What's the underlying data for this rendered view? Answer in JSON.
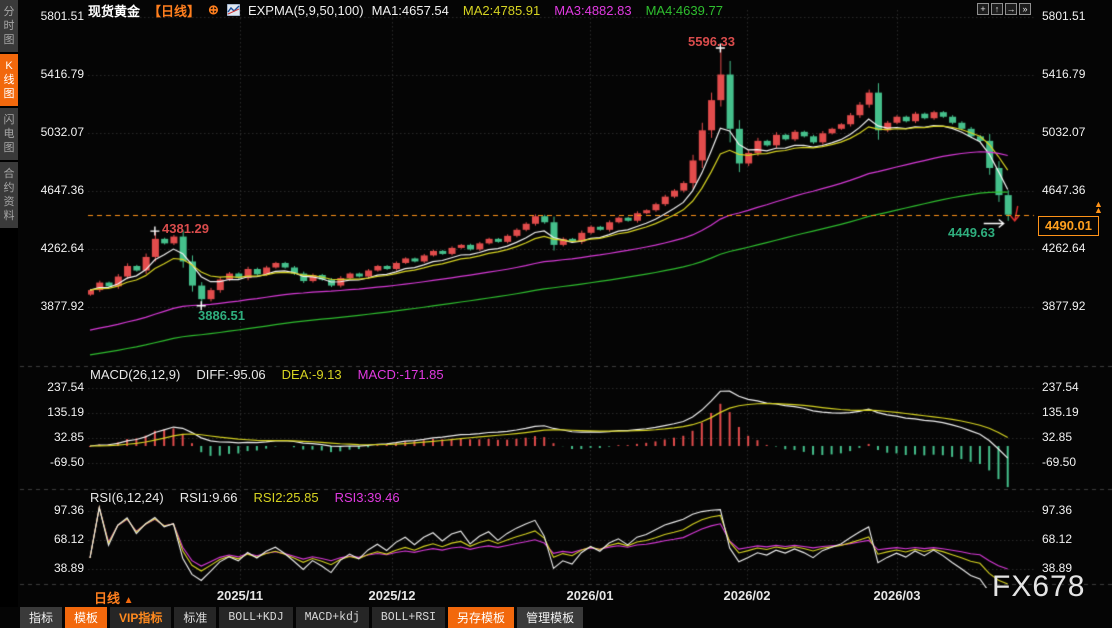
{
  "sidebar": {
    "items": [
      {
        "id": "time-chart",
        "label": "分时图",
        "active": false
      },
      {
        "id": "kline-chart",
        "label": "K线图",
        "active": true
      },
      {
        "id": "lightning-chart",
        "label": "闪电图",
        "active": false
      },
      {
        "id": "contract-info",
        "label": "合约资料",
        "active": false
      }
    ]
  },
  "header": {
    "symbol": "现货黄金",
    "period": "【日线】",
    "plus_icon": "⊕",
    "indicator": "EXPMA(5,9,50,100)",
    "ma_values": [
      {
        "name": "MA1",
        "text": "MA1:4657.54",
        "value": 4657.54,
        "color": "#f2f2f2"
      },
      {
        "name": "MA2",
        "text": "MA2:4785.91",
        "value": 4785.91,
        "color": "#d6d322"
      },
      {
        "name": "MA3",
        "text": "MA3:4882.83",
        "value": 4882.83,
        "color": "#e03ae0"
      },
      {
        "name": "MA4",
        "text": "MA4:4639.77",
        "value": 4639.77,
        "color": "#2fbf2f"
      }
    ],
    "window_icons": [
      {
        "id": "pan",
        "glyph": "+"
      },
      {
        "id": "scale-y",
        "glyph": "↑"
      },
      {
        "id": "scale-x",
        "glyph": "→"
      },
      {
        "id": "shift-right",
        "glyph": "»"
      }
    ]
  },
  "main_chart": {
    "y_axis": [
      "5801.51",
      "5416.79",
      "5032.07",
      "4647.36",
      "4262.64",
      "3877.92"
    ],
    "annotations": [
      {
        "id": "peak1",
        "text": "4381.29",
        "color": "red"
      },
      {
        "id": "trough1",
        "text": "3886.51",
        "color": "green"
      },
      {
        "id": "peak2",
        "text": "5596.33",
        "color": "red"
      },
      {
        "id": "trough2",
        "text": "4449.63",
        "color": "green"
      }
    ],
    "last_price_label": "4490.01"
  },
  "macd": {
    "title": "MACD(26,12,9)",
    "diff_label": "DIFF:-95.06",
    "dea_label": "DEA:-9.13",
    "macd_label": "MACD:-171.85",
    "y_axis": [
      "237.54",
      "135.19",
      "32.85",
      "-69.50"
    ]
  },
  "rsi": {
    "title": "RSI(6,12,24)",
    "rsi1_label": "RSI1:9.66",
    "rsi2_label": "RSI2:25.85",
    "rsi3_label": "RSI3:39.46",
    "y_axis": [
      "97.36",
      "68.12",
      "38.89"
    ]
  },
  "x_axis": {
    "period": "日线",
    "labels": [
      "2025/11",
      "2025/12",
      "2026/01",
      "2026/02",
      "2026/03"
    ]
  },
  "toolbar": {
    "items": [
      {
        "id": "indicator",
        "label": "指标",
        "style": "plain"
      },
      {
        "id": "template",
        "label": "模板",
        "style": "active"
      },
      {
        "id": "vip-indicator",
        "label": "VIP指标",
        "style": "vip"
      },
      {
        "id": "standard",
        "label": "标准",
        "style": "std"
      },
      {
        "id": "boll-kdj",
        "label": "BOLL+KDJ",
        "style": "mono"
      },
      {
        "id": "macd-kdj",
        "label": "MACD+kdj",
        "style": "mono"
      },
      {
        "id": "boll-rsi",
        "label": "BOLL+RSI",
        "style": "mono"
      },
      {
        "id": "save-template",
        "label": "另存模板",
        "style": "active"
      },
      {
        "id": "manage-template",
        "label": "管理模板",
        "style": "plain"
      }
    ]
  },
  "watermark": "FX678",
  "colors": {
    "up": "#e24c4c",
    "down": "#45c08c",
    "ma1": "#f2f2f2",
    "ma2": "#d6d322",
    "ma3": "#d93ad9",
    "ma4": "#2fbf2f",
    "accent": "#f2680c",
    "dashed_line": "#ff9318",
    "grid": "#2c2c2c",
    "separator": "#3d3d3d",
    "label_red": "#d94c4c",
    "label_green": "#2fae7e"
  },
  "chart_data": [
    {
      "type": "candlestick",
      "title": "现货黄金 日线 (Spot Gold, daily)",
      "x_labels": [
        "2025/11",
        "2025/12",
        "2026/01",
        "2026/02",
        "2026/03"
      ],
      "y_ticks": [
        5801.51,
        5416.79,
        5032.07,
        4647.36,
        4262.64,
        3877.92
      ],
      "first_open": 3960,
      "closes": [
        3990,
        4040,
        4015,
        4080,
        4150,
        4120,
        4210,
        4330,
        4300,
        4345,
        4180,
        4020,
        3930,
        3990,
        4060,
        4100,
        4070,
        4130,
        4095,
        4140,
        4170,
        4140,
        4100,
        4050,
        4090,
        4060,
        4020,
        4070,
        4100,
        4080,
        4120,
        4150,
        4130,
        4170,
        4200,
        4180,
        4220,
        4250,
        4230,
        4270,
        4290,
        4260,
        4300,
        4330,
        4310,
        4350,
        4390,
        4430,
        4480,
        4440,
        4290,
        4330,
        4310,
        4370,
        4410,
        4390,
        4440,
        4470,
        4450,
        4500,
        4520,
        4560,
        4610,
        4650,
        4700,
        4850,
        5050,
        5250,
        5420,
        5060,
        4830,
        4900,
        4980,
        4950,
        5020,
        4990,
        5040,
        5010,
        4970,
        5030,
        5060,
        5090,
        5150,
        5220,
        5300,
        5050,
        5100,
        5140,
        5110,
        5160,
        5130,
        5170,
        5140,
        5100,
        5060,
        5010,
        4980,
        4800,
        4620,
        4490.01
      ],
      "wick_overrides": {
        "7": {
          "high": 4381.29
        },
        "12": {
          "low": 3886.51
        },
        "68": {
          "high": 5596.33
        },
        "99": {
          "low": 4449.63
        }
      },
      "last_price": 4490.01,
      "ma_lines": [
        {
          "name": "MA1",
          "period": 5,
          "end": 4657.54,
          "seed": null
        },
        {
          "name": "MA2",
          "period": 9,
          "end": 4785.91,
          "seed": null
        },
        {
          "name": "MA3",
          "period": 50,
          "end": 4882.83,
          "seed": 3725
        },
        {
          "name": "MA4",
          "period": 100,
          "end": 4639.77,
          "seed": 3560
        }
      ]
    },
    {
      "type": "macd",
      "params": [
        26,
        12,
        9
      ],
      "diff": -95.06,
      "dea": -9.13,
      "macd": -171.85,
      "y_ticks": [
        237.54,
        135.19,
        32.85,
        -69.5
      ],
      "note": "histogram red above 0 / green below 0; DIFF white line, DEA yellow line; derived from closes of chart_data[0]"
    },
    {
      "type": "rsi",
      "params": [
        6,
        12,
        24
      ],
      "rsi1": 9.66,
      "rsi2": 25.85,
      "rsi3": 39.46,
      "y_ticks": [
        97.36,
        68.12,
        38.89
      ],
      "note": "RSI1 white, RSI2 yellow, RSI3 magenta; derived from closes of chart_data[0]"
    }
  ]
}
